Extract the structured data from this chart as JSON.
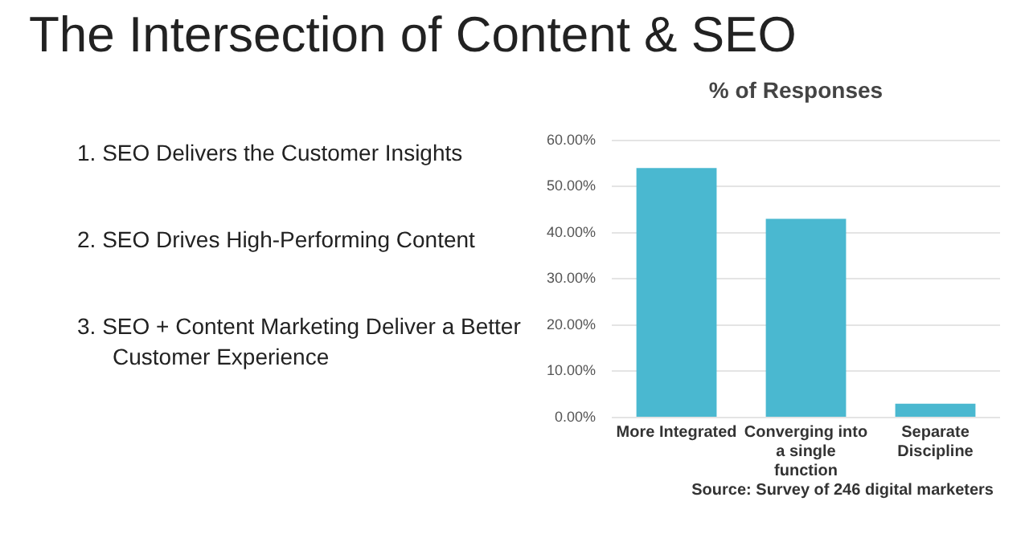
{
  "chart_data": {
    "type": "bar",
    "title": "The Intersection of Content & SEO",
    "subtitle": "% of Responses",
    "categories": [
      "More Integrated",
      "Converging into a single function",
      "Separate Discipline"
    ],
    "values": [
      54,
      43,
      3
    ],
    "color": "#4ab8d0",
    "ylim": [
      0,
      60
    ],
    "yticks": [
      {
        "value": 0,
        "label": "0.00%"
      },
      {
        "value": 10,
        "label": "10.00%"
      },
      {
        "value": 20,
        "label": "20.00%"
      },
      {
        "value": 30,
        "label": "30.00%"
      },
      {
        "value": 40,
        "label": "40.00%"
      },
      {
        "value": 50,
        "label": "50.00%"
      },
      {
        "value": 60,
        "label": "60.00%"
      }
    ],
    "grid": "y",
    "legend": false,
    "annotations": [
      "1.  SEO Delivers the Customer Insights",
      "2.  SEO Drives High-Performing Content",
      "3.  SEO + Content Marketing Deliver a Better Customer Experience",
      "Source: Survey of 246 digital marketers"
    ]
  }
}
